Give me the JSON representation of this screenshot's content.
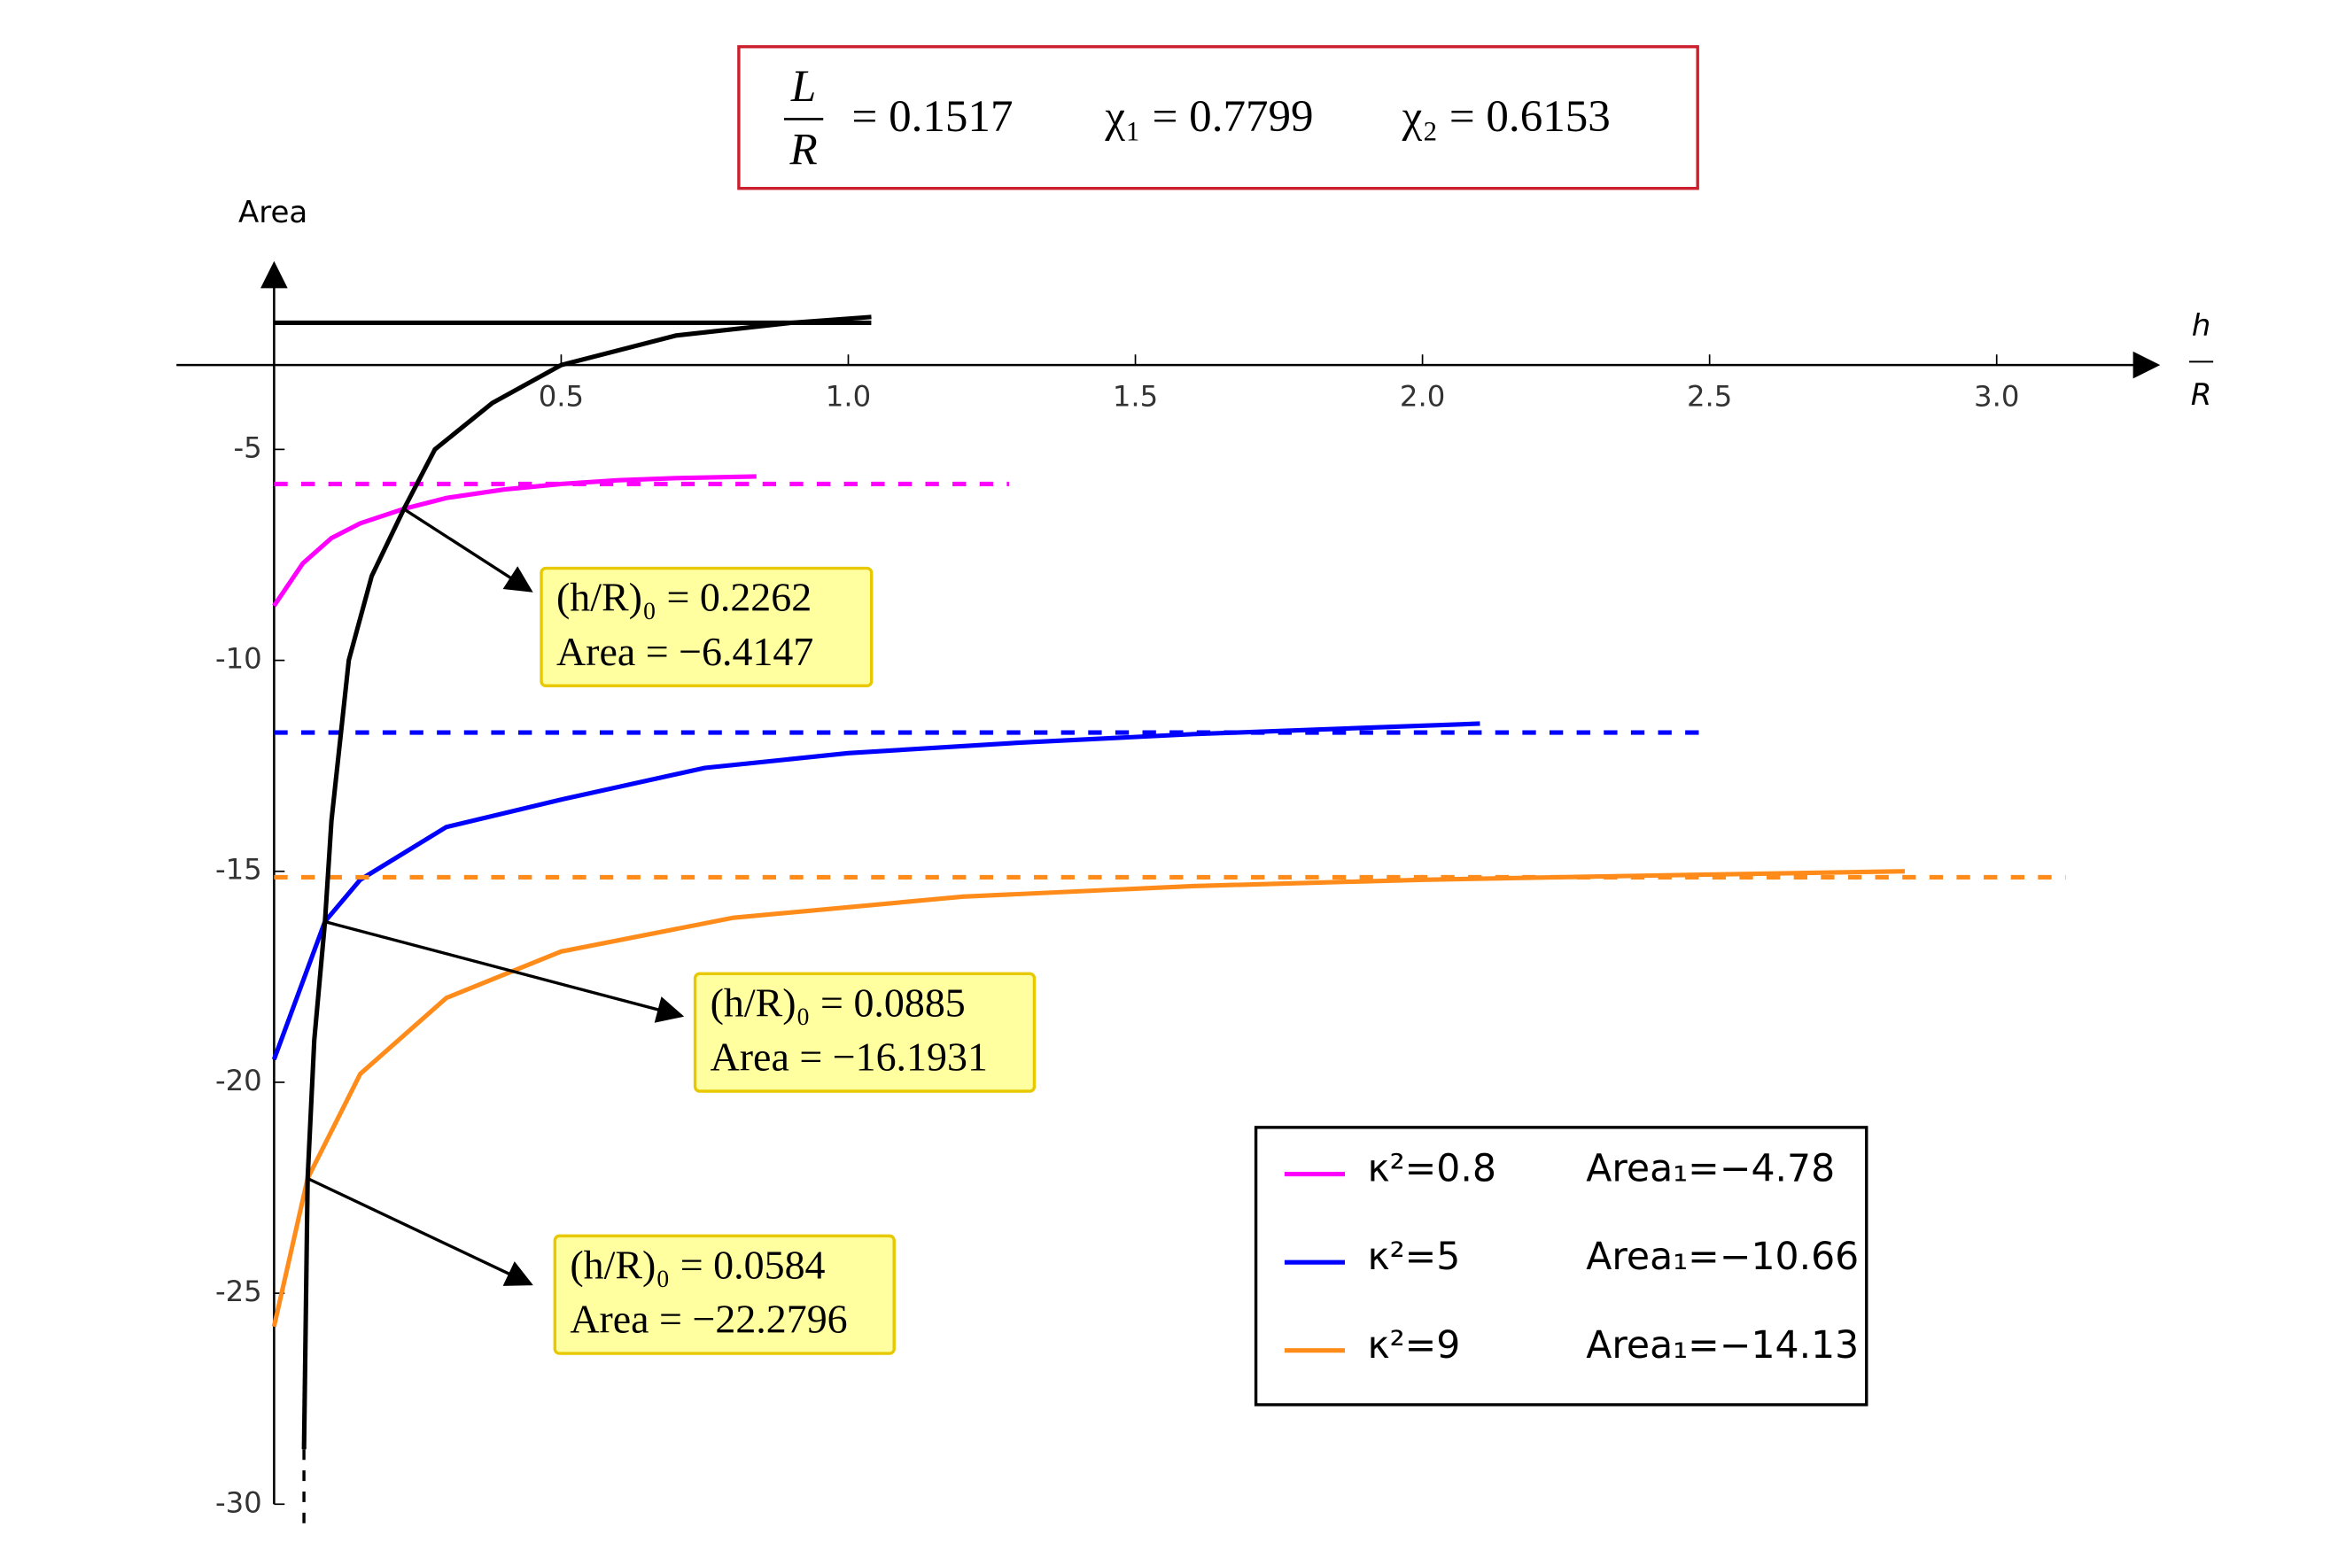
{
  "chart_data": {
    "type": "line",
    "header": {
      "fraction_top": "L",
      "fraction_bottom": "R",
      "items": [
        "= 0.1517",
        "χ₁ = 0.7799",
        "χ₂ = 0.6153"
      ]
    },
    "ylabel": "Area",
    "xlabel_top": "h",
    "xlabel_bottom": "R",
    "xlim": [
      -0.17,
      3.28
    ],
    "ylim": [
      -30.5,
      -0.6
    ],
    "axes_origin": [
      0,
      -3
    ],
    "xticks": [
      0.5,
      {
        "value": 1,
        "label": "1.0"
      },
      1.5,
      {
        "value": 2,
        "label": "2.0"
      },
      2.5,
      {
        "value": 3,
        "label": "3.0"
      }
    ],
    "yticks": [
      -5,
      -10,
      -15,
      -20,
      -25,
      -30
    ],
    "curve": {
      "color": "#000000",
      "x": [
        0.052,
        0.0584,
        0.07,
        0.0885,
        0.1,
        0.13,
        0.17,
        0.2262,
        0.28,
        0.38,
        0.5,
        0.7,
        0.9,
        1.04
      ],
      "values": [
        -28.7,
        -22.28,
        -19.0,
        -16.19,
        -13.8,
        -10,
        -8.0,
        -6.41,
        -5.0,
        -3.9,
        -3.0,
        -2.3,
        -2.0,
        -1.86
      ]
    },
    "level_line": {
      "color": "#000000",
      "y": -2,
      "x": [
        0,
        1.04
      ]
    },
    "cutoff_line": {
      "color": "#000000",
      "x": 0.052,
      "y": [
        -28.7,
        -30.5
      ]
    },
    "series": [
      {
        "name": "κ²=0.8",
        "area1_label": "Area₁=−4.78",
        "color": "#ff00ff",
        "x": [
          0,
          0.05,
          0.1,
          0.15,
          0.2262,
          0.3,
          0.4,
          0.5,
          0.6,
          0.7,
          0.84
        ],
        "values": [
          -8.71,
          -7.7,
          -7.1,
          -6.75,
          -6.41,
          -6.15,
          -5.95,
          -5.82,
          -5.73,
          -5.68,
          -5.64
        ],
        "asymptote": -5.82,
        "asymptote_x": [
          0,
          1.28
        ]
      },
      {
        "name": "κ²=5",
        "area1_label": "Area₁=−10.66",
        "color": "#0000ff",
        "x": [
          0,
          0.0885,
          0.15,
          0.3,
          0.5,
          0.75,
          1.0,
          1.3,
          1.6,
          1.9,
          2.1
        ],
        "values": [
          -19.46,
          -16.19,
          -15.2,
          -13.95,
          -13.3,
          -12.55,
          -12.2,
          -11.95,
          -11.75,
          -11.6,
          -11.5
        ],
        "asymptote": -11.71,
        "asymptote_x": [
          0,
          2.5
        ]
      },
      {
        "name": "κ²=9",
        "area1_label": "Area₁=−14.13",
        "color": "#ff8c1a",
        "x": [
          0,
          0.0584,
          0.15,
          0.3,
          0.5,
          0.8,
          1.2,
          1.6,
          2.0,
          2.4,
          2.84
        ],
        "values": [
          -25.79,
          -22.28,
          -19.8,
          -18.0,
          -16.9,
          -16.1,
          -15.6,
          -15.35,
          -15.2,
          -15.1,
          -15.0
        ],
        "asymptote": -15.14,
        "asymptote_x": [
          0,
          3.12
        ]
      }
    ],
    "annotations": [
      {
        "x": 0.2262,
        "y": -6.4147,
        "label": "(h/R)₀ = 0.2262",
        "area_label": "Area = −6.4147"
      },
      {
        "x": 0.0885,
        "y": -16.1931,
        "label": "(h/R)₀ = 0.0885",
        "area_label": "Area = −16.1931"
      },
      {
        "x": 0.0584,
        "y": -22.2796,
        "label": "(h/R)₀ = 0.0584",
        "area_label": "Area = −22.2796"
      }
    ]
  }
}
